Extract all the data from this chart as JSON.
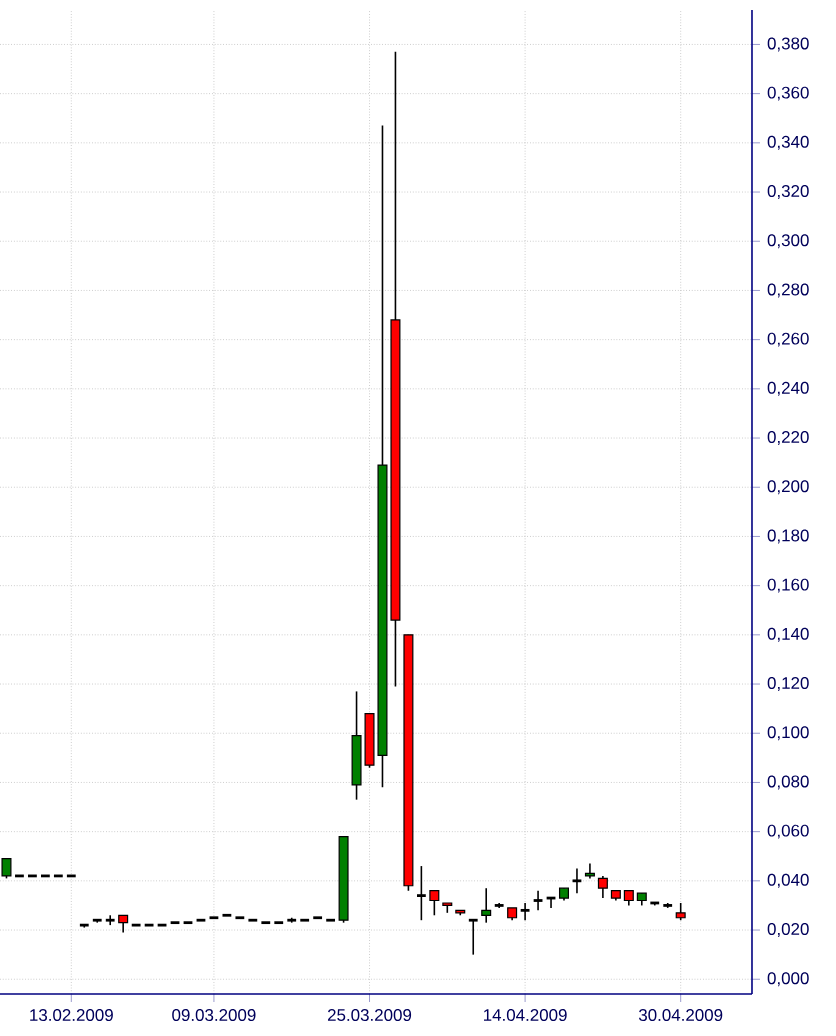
{
  "chart_data": {
    "type": "candlestick",
    "categories": [
      null,
      null,
      null,
      null,
      null,
      "13.02.2009",
      null,
      null,
      null,
      null,
      null,
      null,
      null,
      null,
      null,
      null,
      "09.03.2009",
      null,
      null,
      null,
      null,
      null,
      null,
      null,
      null,
      null,
      null,
      null,
      "25.03.2009",
      null,
      null,
      null,
      null,
      null,
      null,
      null,
      null,
      null,
      null,
      null,
      "14.04.2009",
      null,
      null,
      null,
      null,
      null,
      null,
      null,
      null,
      null,
      null,
      null,
      "30.04.2009",
      null,
      null,
      null,
      null,
      null
    ],
    "ohlc": [
      [
        0.042,
        0.049,
        0.041,
        0.049
      ],
      [
        0.042,
        0.042,
        0.042,
        0.042
      ],
      [
        0.042,
        0.042,
        0.042,
        0.042
      ],
      [
        0.042,
        0.042,
        0.042,
        0.042
      ],
      [
        0.042,
        0.042,
        0.042,
        0.042
      ],
      [
        0.042,
        0.042,
        0.042,
        0.042
      ],
      [
        0.022,
        0.022,
        0.021,
        0.022
      ],
      [
        0.024,
        0.024,
        0.023,
        0.024
      ],
      [
        0.024,
        0.026,
        0.022,
        0.024
      ],
      [
        0.026,
        0.026,
        0.019,
        0.023
      ],
      [
        0.022,
        0.022,
        0.022,
        0.022
      ],
      [
        0.022,
        0.022,
        0.022,
        0.022
      ],
      [
        0.022,
        0.022,
        0.022,
        0.022
      ],
      [
        0.023,
        0.023,
        0.023,
        0.023
      ],
      [
        0.023,
        0.023,
        0.023,
        0.023
      ],
      [
        0.024,
        0.024,
        0.024,
        0.024
      ],
      [
        0.025,
        0.025,
        0.025,
        0.025
      ],
      [
        0.026,
        0.026,
        0.026,
        0.026
      ],
      [
        0.025,
        0.025,
        0.025,
        0.025
      ],
      [
        0.024,
        0.024,
        0.024,
        0.024
      ],
      [
        0.023,
        0.023,
        0.023,
        0.023
      ],
      [
        0.023,
        0.023,
        0.023,
        0.023
      ],
      [
        0.024,
        0.025,
        0.023,
        0.024
      ],
      [
        0.024,
        0.024,
        0.024,
        0.024
      ],
      [
        0.025,
        0.025,
        0.025,
        0.025
      ],
      [
        0.024,
        0.024,
        0.024,
        0.024
      ],
      [
        0.024,
        0.058,
        0.023,
        0.058
      ],
      [
        0.079,
        0.117,
        0.073,
        0.099
      ],
      [
        0.108,
        0.108,
        0.086,
        0.087
      ],
      [
        0.091,
        0.347,
        0.078,
        0.209
      ],
      [
        0.268,
        0.377,
        0.119,
        0.146
      ],
      [
        0.14,
        0.14,
        0.036,
        0.038
      ],
      [
        0.034,
        0.046,
        0.024,
        0.034
      ],
      [
        0.036,
        0.036,
        0.026,
        0.032
      ],
      [
        0.031,
        0.031,
        0.027,
        0.03
      ],
      [
        0.028,
        0.028,
        0.026,
        0.027
      ],
      [
        0.024,
        0.024,
        0.01,
        0.024
      ],
      [
        0.026,
        0.037,
        0.023,
        0.028
      ],
      [
        0.03,
        0.031,
        0.029,
        0.03
      ],
      [
        0.029,
        0.029,
        0.024,
        0.025
      ],
      [
        0.028,
        0.031,
        0.024,
        0.028
      ],
      [
        0.032,
        0.036,
        0.028,
        0.032
      ],
      [
        0.033,
        0.033,
        0.029,
        0.033
      ],
      [
        0.033,
        0.037,
        0.032,
        0.037
      ],
      [
        0.04,
        0.045,
        0.035,
        0.04
      ],
      [
        0.042,
        0.047,
        0.041,
        0.043
      ],
      [
        0.041,
        0.042,
        0.033,
        0.037
      ],
      [
        0.036,
        0.036,
        0.032,
        0.033
      ],
      [
        0.036,
        0.036,
        0.03,
        0.032
      ],
      [
        0.032,
        0.035,
        0.03,
        0.035
      ],
      [
        0.031,
        0.031,
        0.03,
        0.031
      ],
      [
        0.03,
        0.031,
        0.029,
        0.03
      ],
      [
        0.027,
        0.031,
        0.024,
        0.025
      ],
      null,
      null,
      null,
      null,
      null
    ],
    "colors": [
      "#008000",
      "#000000",
      "#000000",
      "#000000",
      "#000000",
      "#000000",
      "#000000",
      "#000000",
      "#000000",
      "#ff0000",
      "#000000",
      "#000000",
      "#000000",
      "#000000",
      "#000000",
      "#000000",
      "#000000",
      "#000000",
      "#000000",
      "#000000",
      "#000000",
      "#000000",
      "#000000",
      "#000000",
      "#000000",
      "#000000",
      "#008000",
      "#008000",
      "#ff0000",
      "#008000",
      "#ff0000",
      "#ff0000",
      "#000000",
      "#ff0000",
      "#ff0000",
      "#ff0000",
      "#000000",
      "#008000",
      "#000000",
      "#ff0000",
      "#000000",
      "#000000",
      "#000000",
      "#008000",
      "#000000",
      "#008000",
      "#ff0000",
      "#ff0000",
      "#ff0000",
      "#008000",
      "#000000",
      "#000000",
      "#ff0000",
      null,
      null,
      null,
      null,
      null
    ],
    "ylim": [
      -0.006,
      0.394
    ],
    "yticks": [
      {
        "value": 0,
        "label": "0,000"
      },
      {
        "value": 0.02,
        "label": "0,020"
      },
      {
        "value": 0.04,
        "label": "0,040"
      },
      {
        "value": 0.06,
        "label": "0,060"
      },
      {
        "value": 0.08,
        "label": "0,080"
      },
      {
        "value": 0.1,
        "label": "0,100"
      },
      {
        "value": 0.12,
        "label": "0,120"
      },
      {
        "value": 0.14,
        "label": "0,140"
      },
      {
        "value": 0.16,
        "label": "0,160"
      },
      {
        "value": 0.18,
        "label": "0,180"
      },
      {
        "value": 0.2,
        "label": "0,200"
      },
      {
        "value": 0.22,
        "label": "0,220"
      },
      {
        "value": 0.24,
        "label": "0,240"
      },
      {
        "value": 0.26,
        "label": "0,260"
      },
      {
        "value": 0.28,
        "label": "0,280"
      },
      {
        "value": 0.3,
        "label": "0,300"
      },
      {
        "value": 0.32,
        "label": "0,320"
      },
      {
        "value": 0.34,
        "label": "0,340"
      },
      {
        "value": 0.36,
        "label": "0,360"
      },
      {
        "value": 0.38,
        "label": "0,380"
      }
    ],
    "grid": true
  }
}
